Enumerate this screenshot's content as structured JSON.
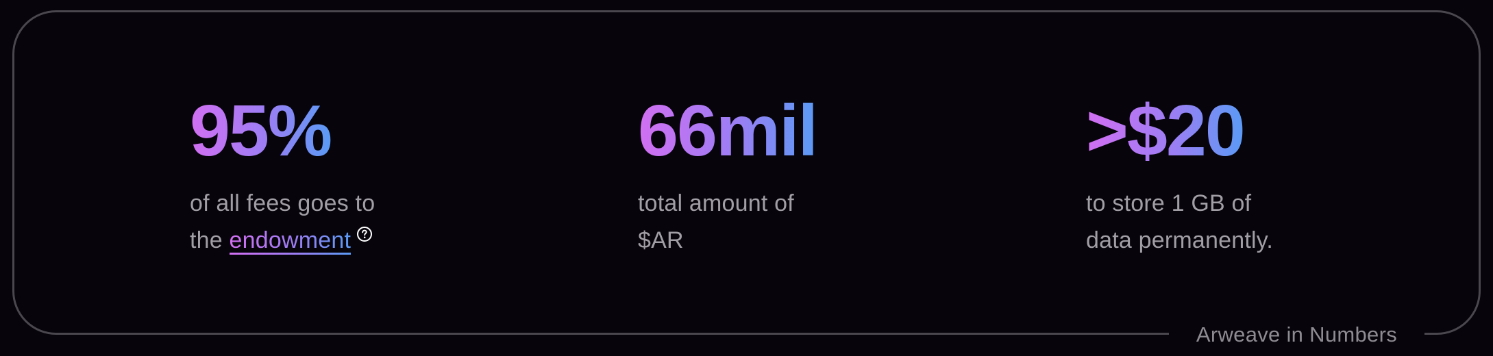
{
  "caption": "Arweave in Numbers",
  "stats": [
    {
      "value": "95%",
      "line1": "of all fees goes to",
      "line2_prefix": "the",
      "link_text": "endowment"
    },
    {
      "value": "66mil",
      "line1": "total amount of",
      "line2": "$AR"
    },
    {
      "value": ">$20",
      "line1": "to store 1 GB of",
      "line2": "data permanently."
    }
  ],
  "colors": {
    "gradient_start": "#d26ff2",
    "gradient_mid": "#9b7ef4",
    "gradient_end": "#5a9bf5",
    "background": "#07040b",
    "border": "#4a474f",
    "text_muted": "#a19ea6"
  }
}
